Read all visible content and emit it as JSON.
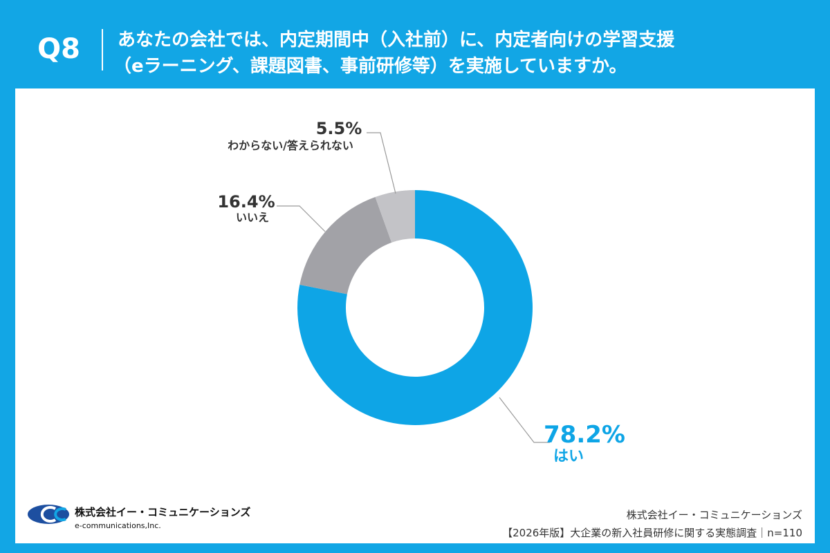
{
  "header": {
    "number": "Q8",
    "question": [
      "あなたの会社では、内定期間中（入社前）に、内定者向けの学習支援",
      "（eラーニング、課題図書、事前研修等）を実施していますか。"
    ]
  },
  "chart_data": {
    "type": "pie",
    "donut": true,
    "categories": [
      "はい",
      "いいえ",
      "わからない/答えられない"
    ],
    "values": [
      78.2,
      16.4,
      5.5
    ],
    "value_labels": [
      "78.2%",
      "16.4%",
      "5.5%"
    ],
    "colors": [
      "#0ea5e6",
      "#a2a2a7",
      "#c3c3c7"
    ]
  },
  "footer": {
    "logo_name": "株式会社イー・コミュニケーションズ",
    "logo_sub": "e-communications,Inc.",
    "company": "株式会社イー・コミュニケーションズ",
    "source": "【2026年版】大企業の新入社員研修に関する実態調査｜n=110"
  }
}
